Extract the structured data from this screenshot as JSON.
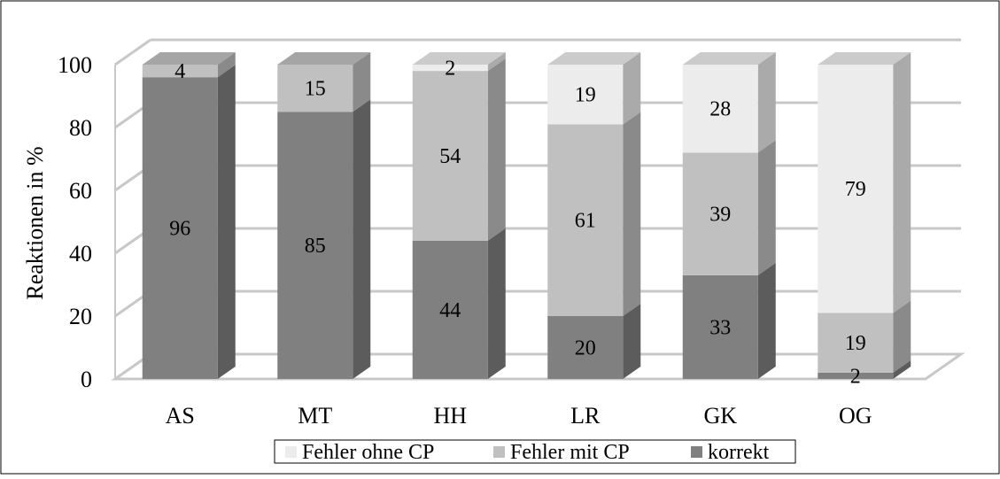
{
  "chart_data": {
    "type": "bar",
    "stacked": true,
    "three_d": true,
    "categories": [
      "AS",
      "MT",
      "HH",
      "LR",
      "GK",
      "OG"
    ],
    "series": [
      {
        "name": "korrekt",
        "values": [
          96,
          85,
          44,
          20,
          33,
          2
        ],
        "color": "#808080"
      },
      {
        "name": "Fehler mit CP",
        "values": [
          4,
          15,
          54,
          61,
          39,
          19
        ],
        "color": "#c0c0c0"
      },
      {
        "name": "Fehler ohne CP",
        "values": [
          0,
          0,
          2,
          19,
          28,
          79
        ],
        "color": "#ececec"
      }
    ],
    "data_labels": [
      [
        "96",
        "85",
        "44",
        "20",
        "33",
        "2"
      ],
      [
        "4",
        "15",
        "54",
        "61",
        "39",
        "19"
      ],
      [
        "",
        "",
        "2",
        "19",
        "28",
        "79"
      ]
    ],
    "ylabel": "Reaktionen in %",
    "ylim": [
      0,
      100
    ],
    "yticks": [
      0,
      20,
      40,
      60,
      80,
      100
    ],
    "grid": true,
    "legend": {
      "position": "bottom",
      "entries": [
        "Fehler ohne CP",
        "Fehler mit CP",
        "korrekt"
      ]
    }
  }
}
